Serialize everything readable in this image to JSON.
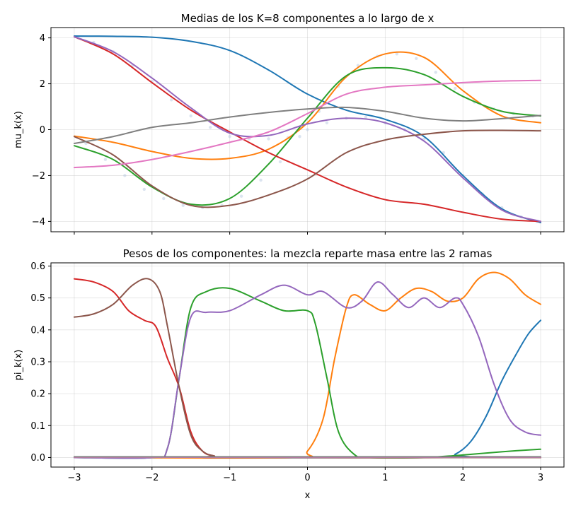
{
  "chart_data": [
    {
      "type": "line",
      "title": "Medias de los K=8 componentes a lo largo de x",
      "xlabel": "",
      "ylabel": "mu_k(x)",
      "xlim": [
        -3.3,
        3.3
      ],
      "ylim": [
        -4.45,
        4.45
      ],
      "xticks": [
        -3,
        -2,
        -1,
        0,
        1,
        2,
        3
      ],
      "xtick_labels": [
        "",
        "",
        "",
        "",
        "",
        "",
        ""
      ],
      "yticks": [
        -4,
        -2,
        0,
        2,
        4
      ],
      "ytick_labels": [
        "−4",
        "−2",
        "0",
        "2",
        "4"
      ],
      "grid": true,
      "x": [
        -3,
        -2.5,
        -2,
        -1.5,
        -1,
        -0.5,
        0,
        0.5,
        1,
        1.5,
        2,
        2.5,
        3
      ],
      "series": [
        {
          "color": "#1f77b4",
          "values": [
            4.08,
            4.07,
            4.03,
            3.85,
            3.45,
            2.6,
            1.55,
            0.85,
            0.45,
            -0.3,
            -2.0,
            -3.45,
            -4.05
          ]
        },
        {
          "color": "#ff7f0e",
          "values": [
            -0.28,
            -0.55,
            -0.95,
            -1.25,
            -1.25,
            -0.85,
            0.3,
            2.3,
            3.3,
            3.15,
            1.7,
            0.6,
            0.3
          ]
        },
        {
          "color": "#2ca02c",
          "values": [
            -0.7,
            -1.3,
            -2.5,
            -3.25,
            -3.0,
            -1.5,
            0.5,
            2.35,
            2.7,
            2.4,
            1.45,
            0.8,
            0.6
          ]
        },
        {
          "color": "#d62728",
          "values": [
            4.05,
            3.3,
            2.05,
            0.85,
            -0.1,
            -1.0,
            -1.75,
            -2.5,
            -3.05,
            -3.25,
            -3.6,
            -3.9,
            -4.0
          ]
        },
        {
          "color": "#9467bd",
          "values": [
            4.05,
            3.4,
            2.25,
            0.95,
            -0.15,
            -0.25,
            0.25,
            0.5,
            0.3,
            -0.5,
            -2.1,
            -3.5,
            -4.0
          ]
        },
        {
          "color": "#8c564b",
          "values": [
            -0.3,
            -1.1,
            -2.45,
            -3.3,
            -3.3,
            -2.85,
            -2.15,
            -1.0,
            -0.45,
            -0.2,
            -0.05,
            -0.03,
            -0.05
          ]
        },
        {
          "color": "#e377c2",
          "values": [
            -1.65,
            -1.55,
            -1.3,
            -0.95,
            -0.55,
            -0.1,
            0.7,
            1.55,
            1.85,
            1.95,
            2.05,
            2.12,
            2.15
          ]
        },
        {
          "color": "#7f7f7f",
          "values": [
            -0.6,
            -0.3,
            0.1,
            0.3,
            0.55,
            0.75,
            0.9,
            0.97,
            0.8,
            0.5,
            0.38,
            0.48,
            0.62
          ]
        }
      ],
      "scatter": {
        "color": "#b0c4de",
        "x": [
          -2.95,
          -2.75,
          -2.5,
          -2.25,
          -2.0,
          -1.75,
          -1.5,
          -1.25,
          -1.0,
          -0.75,
          -0.5,
          -0.25,
          0.0,
          0.25,
          0.5,
          0.75,
          1.0,
          1.25,
          1.5,
          1.75,
          2.0,
          2.25,
          2.5,
          2.75,
          2.95,
          -2.85,
          -2.6,
          -2.35,
          -2.1,
          -1.85,
          -1.6,
          -1.35,
          -1.1,
          -0.85,
          -0.6,
          -0.35,
          -0.1,
          0.15,
          0.4,
          0.65,
          0.9,
          1.15,
          1.4,
          1.65,
          1.9,
          2.15,
          2.4,
          2.65,
          2.9
        ],
        "y": [
          4.0,
          3.8,
          3.4,
          2.8,
          2.1,
          1.3,
          0.6,
          0.1,
          -0.3,
          -0.4,
          -0.4,
          -0.35,
          0.0,
          0.3,
          0.5,
          0.55,
          0.3,
          0.0,
          -0.4,
          -1.0,
          -2.0,
          -2.8,
          -3.4,
          -3.8,
          -4.0,
          -0.6,
          -1.3,
          -2.0,
          -2.6,
          -3.0,
          -3.3,
          -3.4,
          -3.3,
          -2.9,
          -2.2,
          -1.4,
          -0.3,
          0.8,
          1.9,
          2.8,
          3.2,
          3.3,
          3.1,
          2.5,
          1.8,
          1.2,
          0.9,
          0.7,
          0.6
        ]
      }
    },
    {
      "type": "line",
      "title": "Pesos de los componentes: la mezcla reparte masa entre las 2 ramas",
      "xlabel": "x",
      "ylabel": "pi_k(x)",
      "xlim": [
        -3.3,
        3.3
      ],
      "ylim": [
        -0.03,
        0.61
      ],
      "xticks": [
        -3,
        -2,
        -1,
        0,
        1,
        2,
        3
      ],
      "xtick_labels": [
        "−3",
        "−2",
        "−1",
        "0",
        "1",
        "2",
        "3"
      ],
      "yticks": [
        0.0,
        0.1,
        0.2,
        0.3,
        0.4,
        0.5,
        0.6
      ],
      "ytick_labels": [
        "0.0",
        "0.1",
        "0.2",
        "0.3",
        "0.4",
        "0.5",
        "0.6"
      ],
      "grid": true,
      "series": [
        {
          "color": "#1f77b4",
          "x": [
            -3,
            1.7,
            1.9,
            2.1,
            2.3,
            2.5,
            2.7,
            2.85,
            3
          ],
          "values": [
            0.0,
            0.0,
            0.01,
            0.05,
            0.13,
            0.24,
            0.33,
            0.39,
            0.43
          ]
        },
        {
          "color": "#ff7f0e",
          "x": [
            -3,
            -0.2,
            0.0,
            0.2,
            0.35,
            0.5,
            0.6,
            0.8,
            1.0,
            1.2,
            1.4,
            1.6,
            1.8,
            2.0,
            2.2,
            2.4,
            2.6,
            2.8,
            3.0
          ],
          "values": [
            0.0,
            0.0,
            0.02,
            0.12,
            0.31,
            0.47,
            0.51,
            0.48,
            0.46,
            0.5,
            0.53,
            0.52,
            0.49,
            0.5,
            0.56,
            0.58,
            0.56,
            0.51,
            0.48
          ]
        },
        {
          "color": "#2ca02c",
          "x": [
            -3,
            -2.0,
            -1.8,
            -1.65,
            -1.5,
            -1.3,
            -1.0,
            -0.6,
            -0.3,
            0.0,
            0.1,
            0.25,
            0.4,
            0.6,
            0.8,
            1.5,
            2.0,
            2.5,
            3.0
          ],
          "values": [
            0.0,
            0.0,
            0.03,
            0.25,
            0.47,
            0.52,
            0.53,
            0.49,
            0.46,
            0.46,
            0.42,
            0.25,
            0.08,
            0.01,
            0.0,
            0.0,
            0.008,
            0.018,
            0.026
          ]
        },
        {
          "color": "#d62728",
          "x": [
            -3.0,
            -2.75,
            -2.5,
            -2.3,
            -2.1,
            -1.95,
            -1.8,
            -1.65,
            -1.5,
            -1.35,
            -1.2,
            -1.0,
            3.0
          ],
          "values": [
            0.56,
            0.55,
            0.52,
            0.46,
            0.43,
            0.41,
            0.31,
            0.22,
            0.08,
            0.02,
            0.005,
            0.0,
            0.0
          ]
        },
        {
          "color": "#9467bd",
          "x": [
            -3.0,
            -2.0,
            -1.8,
            -1.65,
            -1.5,
            -1.3,
            -1.0,
            -0.6,
            -0.3,
            0.0,
            0.2,
            0.5,
            0.7,
            0.9,
            1.1,
            1.3,
            1.5,
            1.7,
            1.9,
            2.0,
            2.2,
            2.4,
            2.6,
            2.8,
            3.0
          ],
          "values": [
            0.0,
            0.0,
            0.03,
            0.25,
            0.44,
            0.455,
            0.46,
            0.51,
            0.54,
            0.51,
            0.52,
            0.47,
            0.49,
            0.55,
            0.51,
            0.47,
            0.5,
            0.47,
            0.5,
            0.48,
            0.38,
            0.23,
            0.12,
            0.08,
            0.07
          ]
        },
        {
          "color": "#8c564b",
          "x": [
            -3.0,
            -2.75,
            -2.5,
            -2.25,
            -2.05,
            -1.9,
            -1.8,
            -1.65,
            -1.5,
            -1.35,
            -1.2,
            -1.0,
            3.0
          ],
          "values": [
            0.44,
            0.45,
            0.48,
            0.54,
            0.56,
            0.52,
            0.41,
            0.22,
            0.07,
            0.02,
            0.005,
            0.0,
            0.0
          ]
        },
        {
          "color": "#e377c2",
          "x": [
            -3,
            3
          ],
          "values": [
            0.001,
            0.001
          ]
        },
        {
          "color": "#7f7f7f",
          "x": [
            -3,
            3
          ],
          "values": [
            0.002,
            0.002
          ]
        }
      ]
    }
  ]
}
